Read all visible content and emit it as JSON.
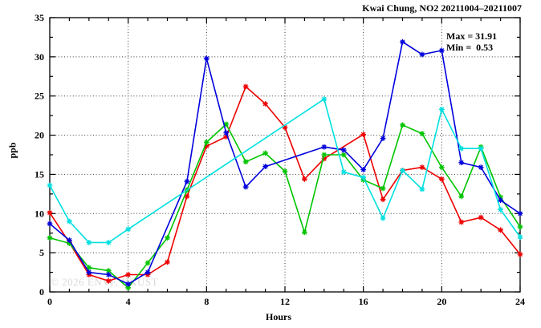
{
  "chart_data": {
    "type": "line",
    "title": "Kwai Chung, NO2 20211004–20211007",
    "xlabel": "Hours",
    "ylabel": "ppb",
    "xlim": [
      0,
      24
    ],
    "ylim": [
      0,
      35
    ],
    "xticks": [
      0,
      4,
      8,
      12,
      16,
      20,
      24
    ],
    "yticks": [
      0,
      5,
      10,
      15,
      20,
      25,
      30,
      35
    ],
    "minor_x_step": 1,
    "minor_y_step": 2.5,
    "grid": "dotted lines at major ticks, full border box with mirrored ticks",
    "legend_position": "none",
    "marker_style": "asterisk",
    "annotations": {
      "max_label": "Max = 31.91",
      "min_label": "Min =  0.53",
      "max_value": 31.91,
      "min_value": 0.53
    },
    "watermark": "© 2026 ENVF, HKUST",
    "series": [
      {
        "name": "red",
        "color": "#ee0000",
        "points": [
          [
            0,
            10.1
          ],
          [
            1,
            6.3
          ],
          [
            2,
            2.2
          ],
          [
            3,
            1.4
          ],
          [
            4,
            2.2
          ],
          [
            5,
            2.2
          ],
          [
            6,
            3.8
          ],
          [
            7,
            12.2
          ],
          [
            8,
            18.6
          ],
          [
            9,
            19.8
          ],
          [
            10,
            26.2
          ],
          [
            11,
            24.0
          ],
          [
            12,
            21.0
          ],
          [
            13,
            14.4
          ],
          [
            14,
            17.0
          ],
          [
            16,
            20.1
          ],
          [
            17,
            11.8
          ],
          [
            18,
            15.5
          ],
          [
            19,
            15.9
          ],
          [
            20,
            14.4
          ],
          [
            21,
            8.9
          ],
          [
            22,
            9.5
          ],
          [
            23,
            7.9
          ],
          [
            24,
            4.8
          ]
        ]
      },
      {
        "name": "green",
        "color": "#00c400",
        "points": [
          [
            0,
            6.9
          ],
          [
            1,
            6.2
          ],
          [
            2,
            3.1
          ],
          [
            3,
            2.7
          ],
          [
            4,
            0.53
          ],
          [
            5,
            3.7
          ],
          [
            6,
            6.9
          ],
          [
            7,
            13.0
          ],
          [
            8,
            19.1
          ],
          [
            9,
            21.4
          ],
          [
            10,
            16.6
          ],
          [
            11,
            17.7
          ],
          [
            12,
            15.4
          ],
          [
            13,
            7.6
          ],
          [
            14,
            17.5
          ],
          [
            15,
            17.5
          ],
          [
            16,
            14.3
          ],
          [
            17,
            13.2
          ],
          [
            18,
            21.3
          ],
          [
            19,
            20.2
          ],
          [
            20,
            15.9
          ],
          [
            21,
            12.2
          ],
          [
            22,
            18.5
          ],
          [
            23,
            12.1
          ],
          [
            24,
            8.3
          ]
        ]
      },
      {
        "name": "blue",
        "color": "#0000dd",
        "points": [
          [
            0,
            8.7
          ],
          [
            1,
            6.6
          ],
          [
            2,
            2.5
          ],
          [
            3,
            2.2
          ],
          [
            4,
            1.0
          ],
          [
            5,
            2.5
          ],
          [
            7,
            14.1
          ],
          [
            8,
            29.8
          ],
          [
            9,
            20.3
          ],
          [
            10,
            13.4
          ],
          [
            11,
            16.0
          ],
          [
            14,
            18.5
          ],
          [
            15,
            18.1
          ],
          [
            16,
            15.6
          ],
          [
            17,
            19.6
          ],
          [
            18,
            31.91
          ],
          [
            19,
            30.3
          ],
          [
            20,
            30.8
          ],
          [
            21,
            16.5
          ],
          [
            22,
            15.9
          ],
          [
            23,
            11.7
          ],
          [
            24,
            10.0
          ]
        ]
      },
      {
        "name": "cyan",
        "color": "#00e0e0",
        "points": [
          [
            0,
            13.6
          ],
          [
            1,
            9.0
          ],
          [
            2,
            6.3
          ],
          [
            3,
            6.3
          ],
          [
            4,
            8.0
          ],
          [
            14,
            24.6
          ],
          [
            15,
            15.3
          ],
          [
            16,
            14.6
          ],
          [
            17,
            9.4
          ],
          [
            18,
            15.5
          ],
          [
            19,
            13.1
          ],
          [
            20,
            23.3
          ],
          [
            21,
            18.3
          ],
          [
            22,
            18.3
          ],
          [
            23,
            10.5
          ],
          [
            24,
            7.0
          ]
        ]
      }
    ]
  }
}
